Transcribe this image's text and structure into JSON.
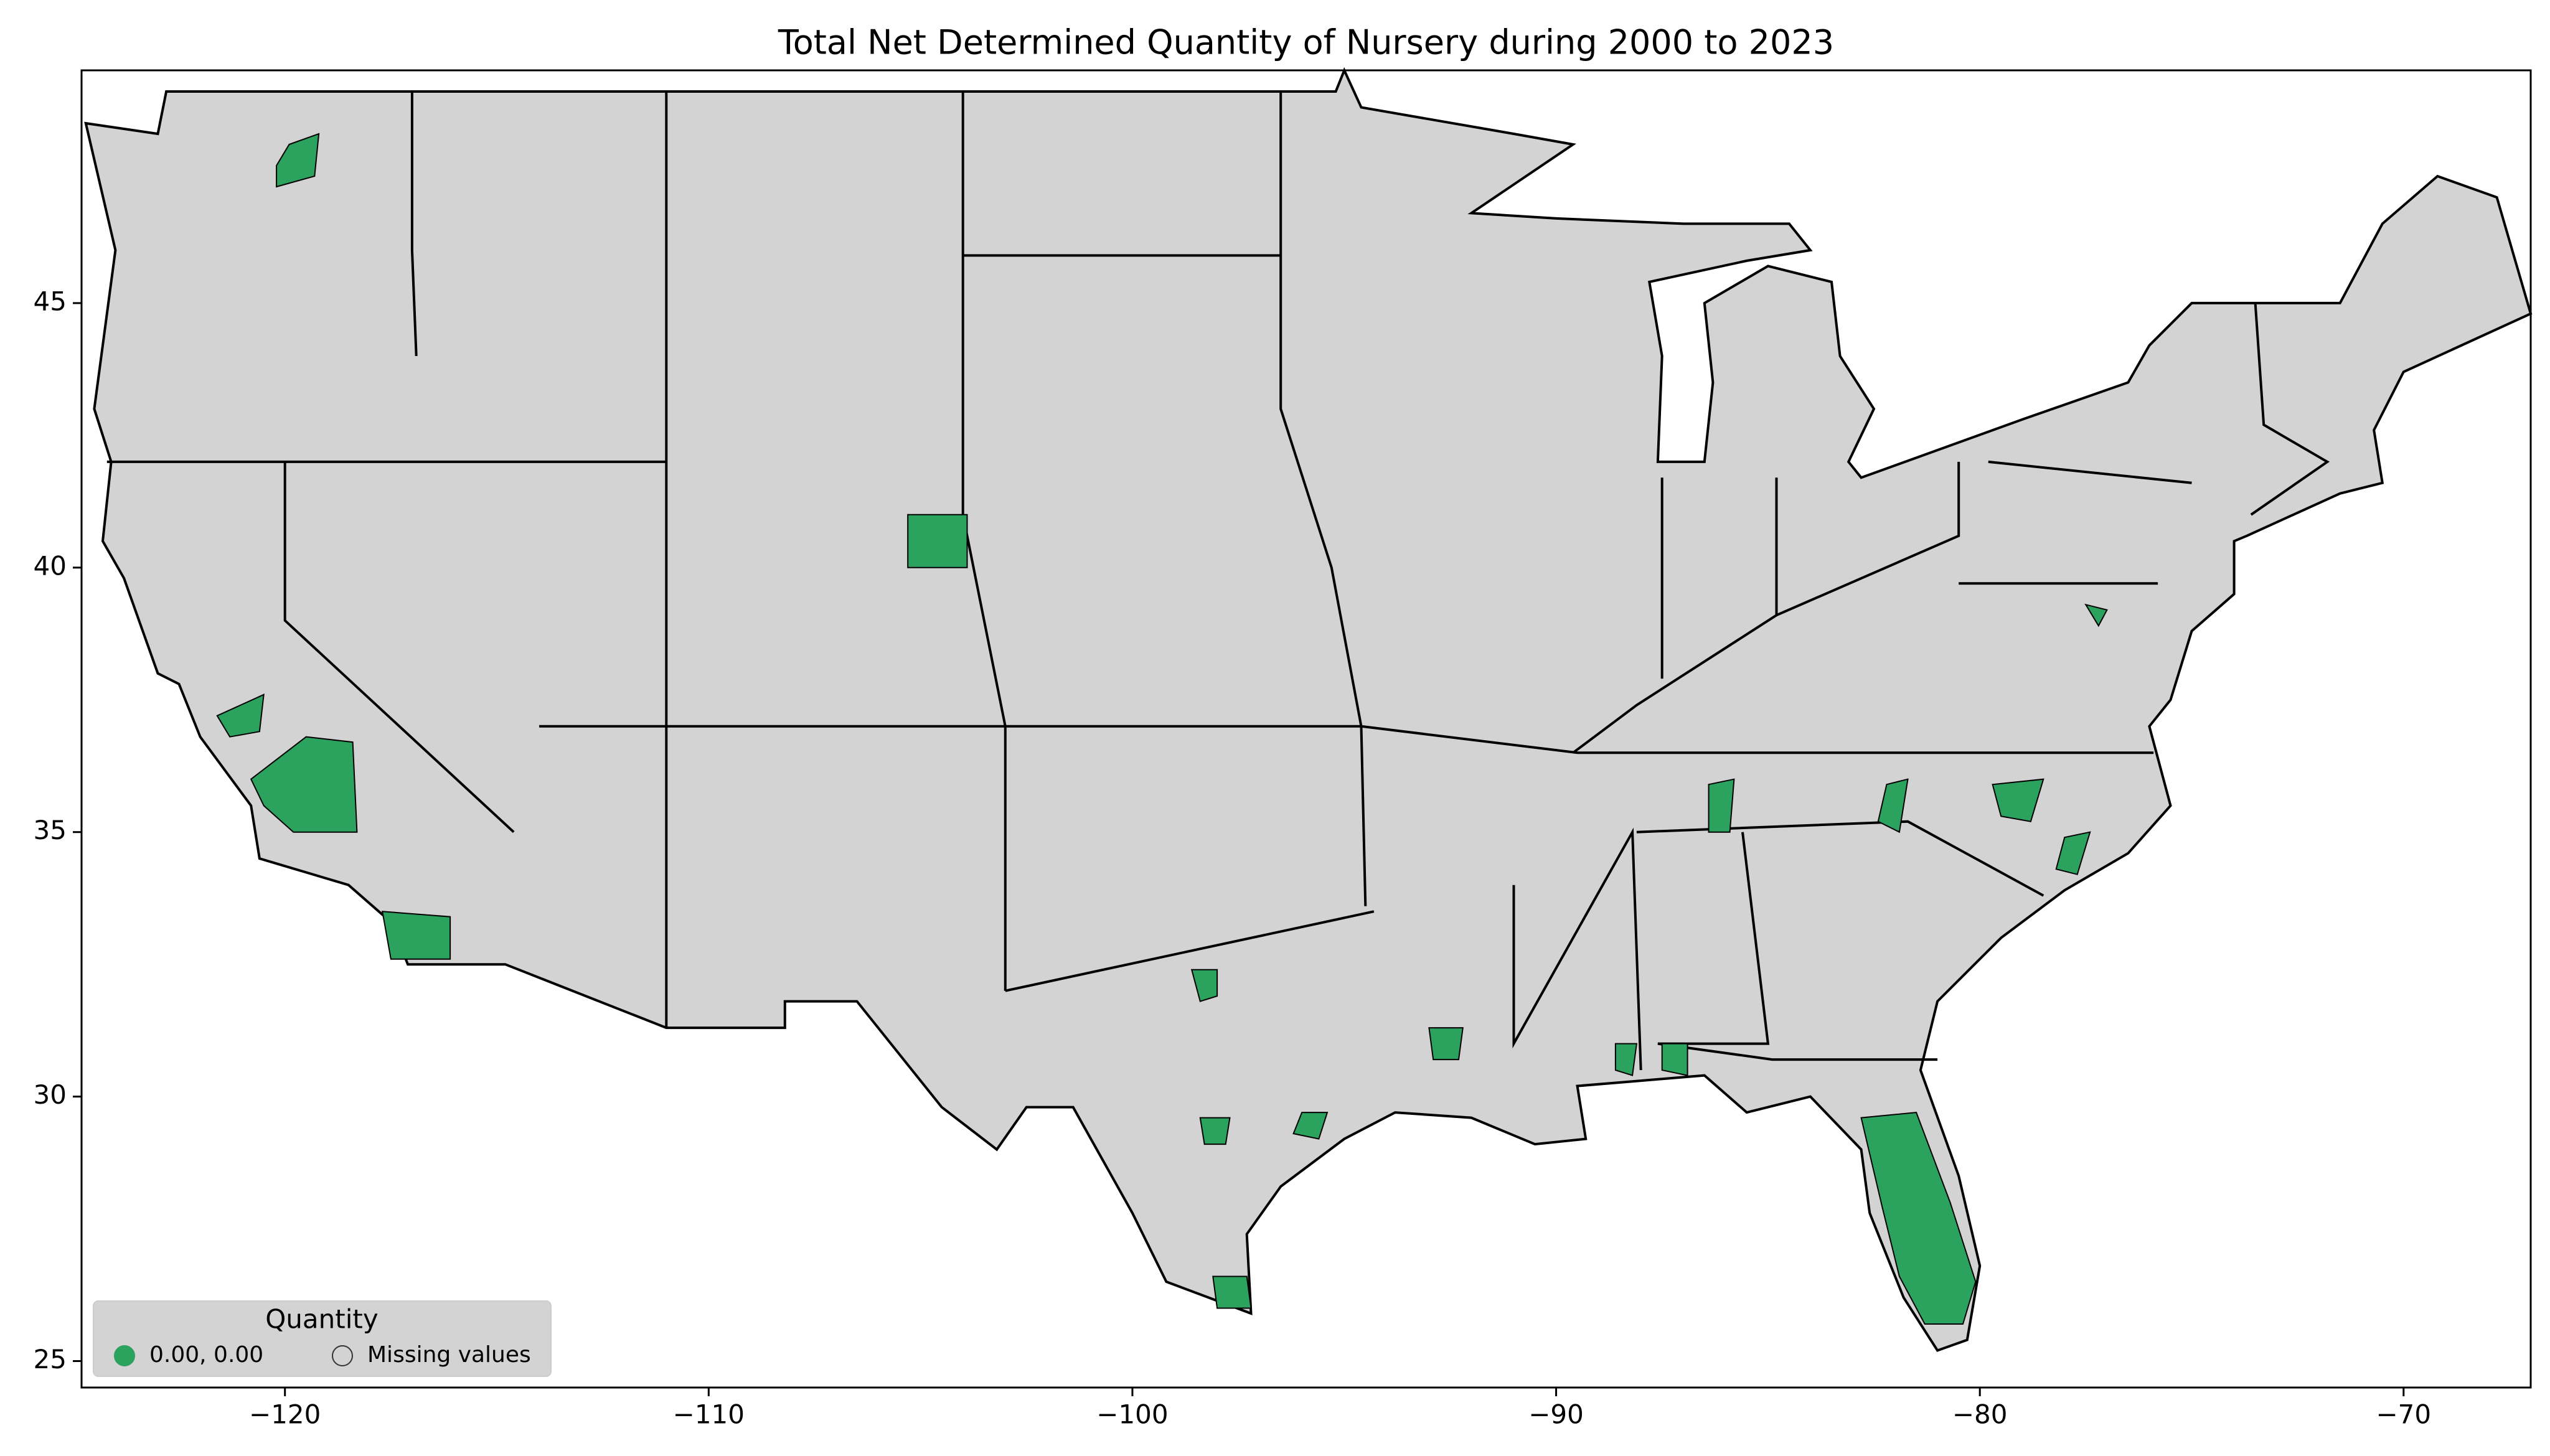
{
  "chart_data": {
    "type": "map",
    "title": "Total Net Determined Quantity of Nursery during 2000 to 2023",
    "xlim": [
      -124.8,
      -67.0
    ],
    "ylim": [
      24.5,
      49.4
    ],
    "xticks": [
      {
        "value": -120,
        "label": "−120"
      },
      {
        "value": -110,
        "label": "−110"
      },
      {
        "value": -100,
        "label": "−100"
      },
      {
        "value": -90,
        "label": "−90"
      },
      {
        "value": -80,
        "label": "−80"
      },
      {
        "value": -70,
        "label": "−70"
      }
    ],
    "yticks": [
      25,
      30,
      35,
      40,
      45
    ],
    "legend": {
      "title": "Quantity",
      "loc": "lower left",
      "entries": [
        {
          "label": "0.00, 0.00",
          "color": "#2ca25f"
        },
        {
          "label": "Missing values",
          "color": "#d3d3d3"
        }
      ]
    }
  }
}
